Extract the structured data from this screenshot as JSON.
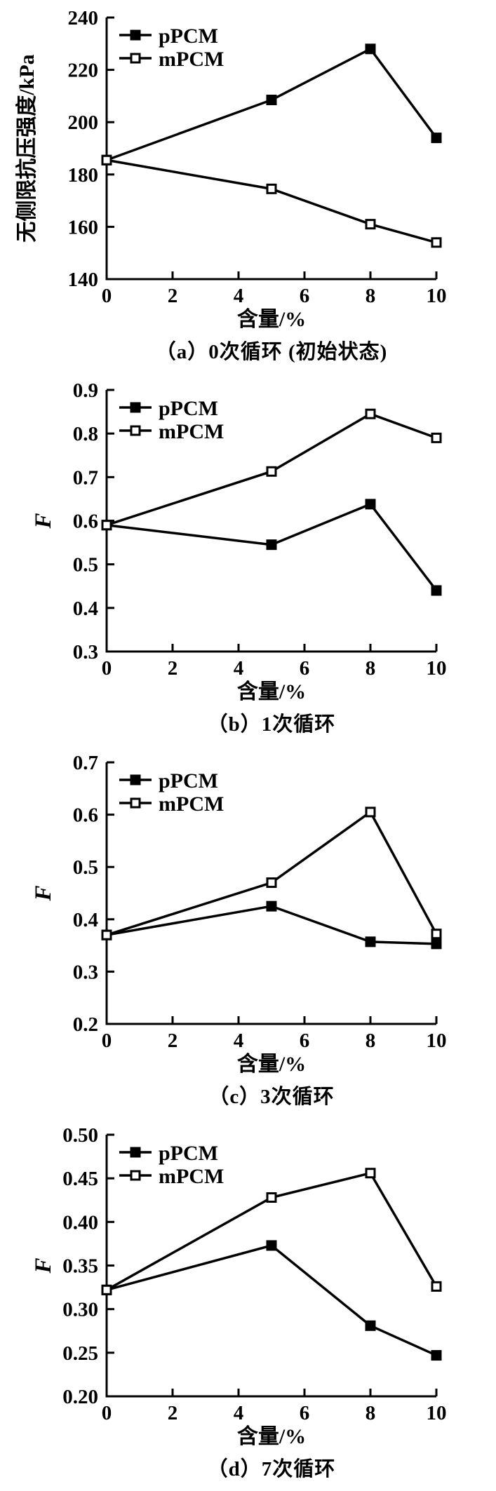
{
  "page": {
    "background": "#ffffff",
    "line_color": "#000000",
    "series_labels": [
      "pPCM",
      "mPCM"
    ]
  },
  "chart_data": [
    {
      "type": "line",
      "title": "（a）0次循环 (初始状态)",
      "xlabel": "含量/%",
      "ylabel": "无侧限抗压强度/kPa",
      "x": [
        0,
        5,
        8,
        10
      ],
      "xlim": [
        0,
        10
      ],
      "ylim": [
        140,
        240
      ],
      "xticks": [
        0,
        2,
        4,
        6,
        8,
        10
      ],
      "yticks": [
        140,
        160,
        180,
        200,
        220,
        240
      ],
      "ytick_decimals": 0,
      "grid": false,
      "legend_position": "top-left",
      "series": [
        {
          "name": "pPCM",
          "marker": "filled-square",
          "color": "#000000",
          "values": [
            185.5,
            208.5,
            228,
            194
          ]
        },
        {
          "name": "mPCM",
          "marker": "open-square",
          "color": "#000000",
          "values": [
            185.5,
            174.5,
            161,
            154
          ]
        }
      ]
    },
    {
      "type": "line",
      "title": "（b）1次循环",
      "xlabel": "含量/%",
      "ylabel": "F",
      "x": [
        0,
        5,
        8,
        10
      ],
      "xlim": [
        0,
        10
      ],
      "ylim": [
        0.3,
        0.9
      ],
      "xticks": [
        0,
        2,
        4,
        6,
        8,
        10
      ],
      "yticks": [
        0.3,
        0.4,
        0.5,
        0.6,
        0.7,
        0.8,
        0.9
      ],
      "ytick_decimals": 1,
      "grid": false,
      "legend_position": "top-left",
      "series": [
        {
          "name": "pPCM",
          "marker": "filled-square",
          "color": "#000000",
          "values": [
            0.59,
            0.545,
            0.638,
            0.44
          ]
        },
        {
          "name": "mPCM",
          "marker": "open-square",
          "color": "#000000",
          "values": [
            0.59,
            0.713,
            0.845,
            0.79
          ]
        }
      ]
    },
    {
      "type": "line",
      "title": "（c）3次循环",
      "xlabel": "含量/%",
      "ylabel": "F",
      "x": [
        0,
        5,
        8,
        10
      ],
      "xlim": [
        0,
        10
      ],
      "ylim": [
        0.2,
        0.7
      ],
      "xticks": [
        0,
        2,
        4,
        6,
        8,
        10
      ],
      "yticks": [
        0.2,
        0.3,
        0.4,
        0.5,
        0.6,
        0.7
      ],
      "ytick_decimals": 1,
      "grid": false,
      "legend_position": "top-left",
      "series": [
        {
          "name": "pPCM",
          "marker": "filled-square",
          "color": "#000000",
          "values": [
            0.37,
            0.425,
            0.357,
            0.353
          ]
        },
        {
          "name": "mPCM",
          "marker": "open-square",
          "color": "#000000",
          "values": [
            0.37,
            0.47,
            0.605,
            0.372
          ]
        }
      ]
    },
    {
      "type": "line",
      "title": "（d）7次循环",
      "xlabel": "含量/%",
      "ylabel": "F",
      "x": [
        0,
        5,
        8,
        10
      ],
      "xlim": [
        0,
        10
      ],
      "ylim": [
        0.2,
        0.5
      ],
      "xticks": [
        0,
        2,
        4,
        6,
        8,
        10
      ],
      "yticks": [
        0.2,
        0.25,
        0.3,
        0.35,
        0.4,
        0.45,
        0.5
      ],
      "ytick_decimals": 2,
      "grid": false,
      "legend_position": "top-left",
      "series": [
        {
          "name": "pPCM",
          "marker": "filled-square",
          "color": "#000000",
          "values": [
            0.322,
            0.373,
            0.281,
            0.247
          ]
        },
        {
          "name": "mPCM",
          "marker": "open-square",
          "color": "#000000",
          "values": [
            0.322,
            0.428,
            0.456,
            0.326
          ]
        }
      ]
    }
  ]
}
